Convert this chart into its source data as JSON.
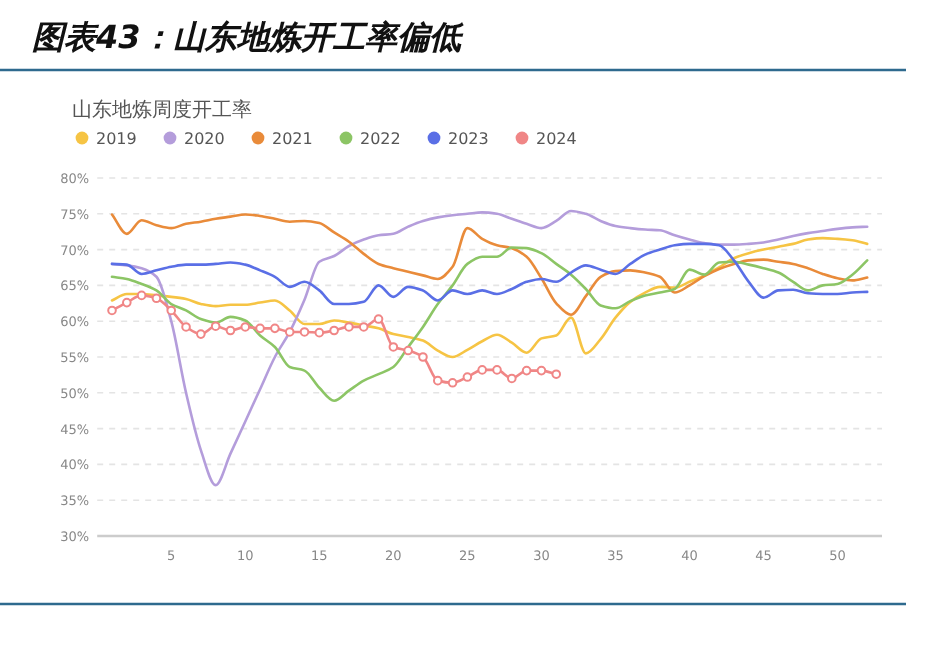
{
  "chart_data": {
    "type": "line",
    "title": "图表43：山东地炼开工率偏低",
    "subtitle": "山东地炼周度开工率",
    "xlim": [
      0,
      53
    ],
    "xticks": [
      5,
      10,
      15,
      20,
      25,
      30,
      35,
      40,
      45,
      50
    ],
    "ylim": [
      30,
      80
    ],
    "yticks": [
      {
        "value": 30,
        "label": "30%"
      },
      {
        "value": 35,
        "label": "35%"
      },
      {
        "value": 40,
        "label": "40%"
      },
      {
        "value": 45,
        "label": "45%"
      },
      {
        "value": 50,
        "label": "50%"
      },
      {
        "value": 55,
        "label": "55%"
      },
      {
        "value": 60,
        "label": "60%"
      },
      {
        "value": 65,
        "label": "65%"
      },
      {
        "value": 70,
        "label": "70%"
      },
      {
        "value": 75,
        "label": "75%"
      },
      {
        "value": 80,
        "label": "80%"
      }
    ],
    "grid": "y",
    "legend": "top left",
    "marker": "none",
    "line_style": "solid",
    "series": [
      {
        "name": "2019",
        "color": "#f6c444",
        "x": [
          1,
          2,
          3,
          4,
          5,
          6,
          7,
          8,
          9,
          10,
          11,
          12,
          13,
          14,
          15,
          16,
          17,
          18,
          19,
          20,
          21,
          22,
          23,
          24,
          25,
          26,
          27,
          28,
          29,
          30,
          31,
          32,
          33,
          34,
          35,
          36,
          37,
          38,
          39,
          40,
          41,
          42,
          43,
          44,
          45,
          46,
          47,
          48,
          49,
          50,
          51,
          52
        ],
        "values": [
          62.9,
          63.8,
          63.8,
          63.6,
          63.4,
          63.1,
          62.4,
          62.1,
          62.3,
          62.3,
          62.6,
          62.9,
          61.5,
          59.6,
          59.6,
          60.1,
          59.8,
          59.4,
          59.0,
          58.2,
          57.8,
          57.3,
          55.9,
          55.0,
          56.0,
          57.2,
          58.1,
          57.0,
          55.6,
          57.6,
          58.0,
          60.5,
          55.5,
          57.5,
          60.5,
          62.7,
          64.0,
          64.8,
          64.7,
          65.5,
          66.4,
          67.5,
          68.8,
          69.5,
          70.0,
          70.4,
          70.8,
          71.4,
          71.6,
          71.5,
          71.3,
          70.8
        ]
      },
      {
        "name": "2020",
        "color": "#b49ddb",
        "x": [
          1,
          2,
          3,
          4,
          5,
          6,
          7,
          8,
          9,
          10,
          11,
          12,
          13,
          14,
          15,
          16,
          17,
          18,
          19,
          20,
          21,
          22,
          23,
          24,
          25,
          26,
          27,
          28,
          29,
          30,
          31,
          32,
          33,
          34,
          35,
          36,
          37,
          38,
          39,
          40,
          41,
          42,
          43,
          44,
          45,
          46,
          47,
          48,
          49,
          50,
          51,
          52
        ],
        "values": [
          68.0,
          67.8,
          67.4,
          66.2,
          60.0,
          50.0,
          42.0,
          37.1,
          41.5,
          46.0,
          50.5,
          55.0,
          58.5,
          63.0,
          68.3,
          69.1,
          70.5,
          71.4,
          72.0,
          72.2,
          73.2,
          74.0,
          74.5,
          74.8,
          75.0,
          75.2,
          75.0,
          74.3,
          73.6,
          73.0,
          74.0,
          75.4,
          75.0,
          74.0,
          73.3,
          73.0,
          72.8,
          72.7,
          72.0,
          71.4,
          70.9,
          70.7,
          70.7,
          70.8,
          71.0,
          71.4,
          71.9,
          72.3,
          72.6,
          72.9,
          73.1,
          73.2
        ]
      },
      {
        "name": "2021",
        "color": "#e98b3a",
        "x": [
          1,
          2,
          3,
          4,
          5,
          6,
          7,
          8,
          9,
          10,
          11,
          12,
          13,
          14,
          15,
          16,
          17,
          18,
          19,
          20,
          21,
          22,
          23,
          24,
          25,
          26,
          27,
          28,
          29,
          30,
          31,
          32,
          33,
          34,
          35,
          36,
          37,
          38,
          39,
          40,
          41,
          42,
          43,
          44,
          45,
          46,
          47,
          48,
          49,
          50,
          51,
          52
        ],
        "values": [
          74.9,
          72.2,
          74.1,
          73.4,
          73.0,
          73.6,
          73.9,
          74.3,
          74.6,
          74.9,
          74.7,
          74.3,
          73.9,
          74.0,
          73.7,
          72.4,
          71.1,
          69.4,
          68.0,
          67.4,
          66.9,
          66.4,
          65.9,
          67.6,
          73.0,
          71.5,
          70.6,
          70.2,
          69.0,
          66.0,
          62.5,
          60.9,
          63.5,
          66.2,
          67.0,
          67.1,
          66.8,
          66.2,
          64.0,
          65.0,
          66.3,
          67.3,
          68.0,
          68.5,
          68.6,
          68.3,
          68.0,
          67.4,
          66.6,
          66.0,
          65.7,
          66.1
        ]
      },
      {
        "name": "2022",
        "color": "#8cc565",
        "x": [
          1,
          2,
          3,
          4,
          5,
          6,
          7,
          8,
          9,
          10,
          11,
          12,
          13,
          14,
          15,
          16,
          17,
          18,
          19,
          20,
          21,
          22,
          23,
          24,
          25,
          26,
          27,
          28,
          29,
          30,
          31,
          32,
          33,
          34,
          35,
          36,
          37,
          38,
          39,
          40,
          41,
          42,
          43,
          44,
          45,
          46,
          47,
          48,
          49,
          50,
          51,
          52
        ],
        "values": [
          66.2,
          65.9,
          65.2,
          64.3,
          62.4,
          61.5,
          60.3,
          59.8,
          60.6,
          60.1,
          58.0,
          56.4,
          53.6,
          53.1,
          50.7,
          48.9,
          50.3,
          51.7,
          52.6,
          53.6,
          56.4,
          59.2,
          62.4,
          65.0,
          68.0,
          69.0,
          69.0,
          70.3,
          70.2,
          69.5,
          68.0,
          66.5,
          64.5,
          62.2,
          61.8,
          62.8,
          63.6,
          64.0,
          64.5,
          67.2,
          66.5,
          68.2,
          68.3,
          67.9,
          67.4,
          66.8,
          65.5,
          64.3,
          65.0,
          65.2,
          66.5,
          68.5
        ]
      },
      {
        "name": "2023",
        "color": "#5a6fe6",
        "x": [
          1,
          2,
          3,
          4,
          5,
          6,
          7,
          8,
          9,
          10,
          11,
          12,
          13,
          14,
          15,
          16,
          17,
          18,
          19,
          20,
          21,
          22,
          23,
          24,
          25,
          26,
          27,
          28,
          29,
          30,
          31,
          32,
          33,
          34,
          35,
          36,
          37,
          38,
          39,
          40,
          41,
          42,
          43,
          44,
          45,
          46,
          47,
          48,
          49,
          50,
          51,
          52
        ],
        "values": [
          68.0,
          67.9,
          66.6,
          67.1,
          67.6,
          67.9,
          67.9,
          68.0,
          68.2,
          67.9,
          67.1,
          66.2,
          64.8,
          65.5,
          64.3,
          62.4,
          62.4,
          62.7,
          65.0,
          63.4,
          64.8,
          64.3,
          62.9,
          64.3,
          63.8,
          64.3,
          63.8,
          64.5,
          65.5,
          65.9,
          65.5,
          66.8,
          67.8,
          67.2,
          66.6,
          68.0,
          69.3,
          70.0,
          70.6,
          70.8,
          70.8,
          70.6,
          68.5,
          65.5,
          63.3,
          64.3,
          64.4,
          63.9,
          63.8,
          63.8,
          64.0,
          64.1
        ]
      },
      {
        "name": "2024",
        "color": "#f08686",
        "marker": "circle",
        "x": [
          1,
          2,
          3,
          4,
          5,
          6,
          7,
          8,
          9,
          10,
          11,
          12,
          13,
          14,
          15,
          16,
          17,
          18,
          19,
          20,
          21,
          22,
          23,
          24,
          25,
          26,
          27,
          28,
          29,
          30,
          31
        ],
        "values": [
          61.5,
          62.6,
          63.6,
          63.2,
          61.5,
          59.2,
          58.2,
          59.3,
          58.7,
          59.2,
          59.0,
          59.0,
          58.5,
          58.5,
          58.4,
          58.7,
          59.2,
          59.2,
          60.3,
          56.4,
          55.9,
          55.0,
          51.7,
          51.4,
          52.2,
          53.2,
          53.2,
          52.0,
          53.1,
          53.1,
          52.6
        ]
      }
    ]
  }
}
